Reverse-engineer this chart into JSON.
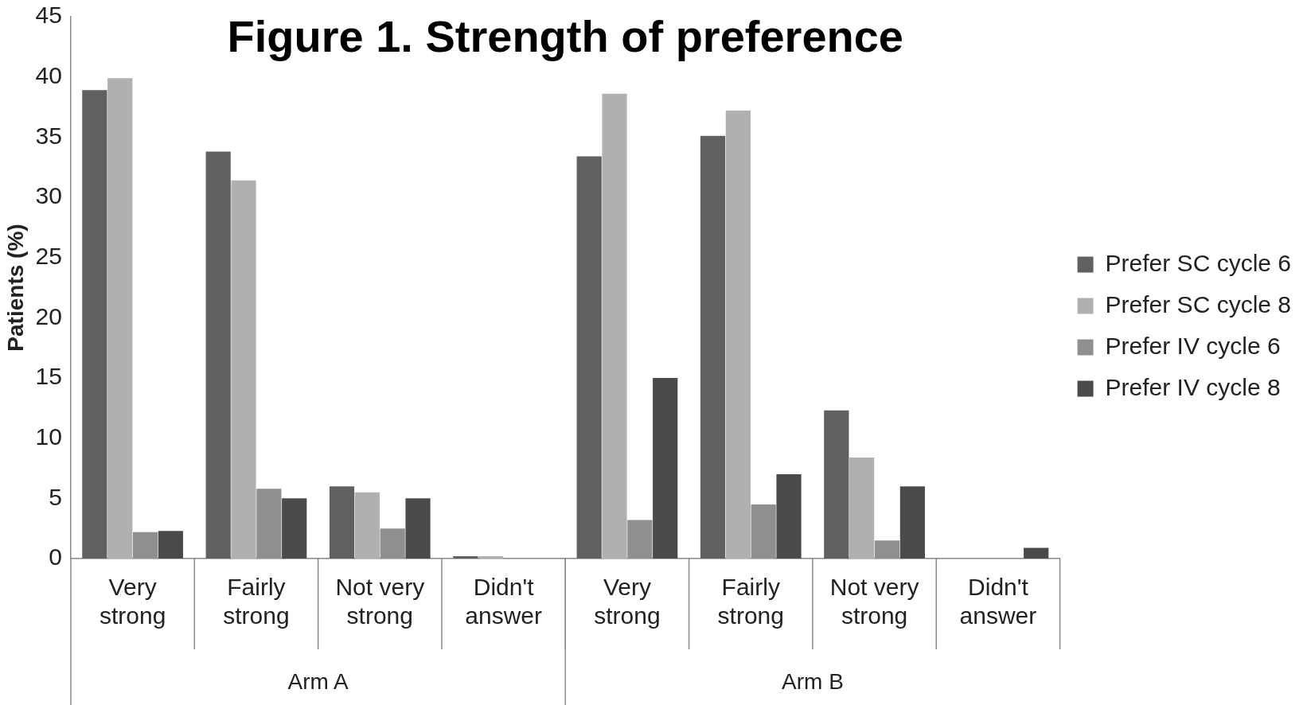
{
  "chart_data": {
    "type": "bar",
    "title": "Figure 1. Strength of preference",
    "ylabel": "Patients (%)",
    "categories": [
      "Very strong",
      "Fairly strong",
      "Not very strong",
      "Didn't answer",
      "Very strong",
      "Fairly strong",
      "Not very strong",
      "Didn't answer"
    ],
    "series": [
      {
        "name": "Prefer SC cycle 6",
        "color": "#606060",
        "values": [
          38.9,
          33.8,
          6.0,
          0.2,
          33.4,
          35.1,
          12.3,
          0
        ]
      },
      {
        "name": "Prefer SC cycle 8",
        "color": "#b0b0b0",
        "values": [
          39.9,
          31.4,
          5.5,
          0.2,
          38.6,
          37.2,
          8.4,
          0
        ]
      },
      {
        "name": "Prefer IV cycle 6",
        "color": "#8f8f8f",
        "values": [
          2.2,
          5.8,
          2.5,
          0,
          3.2,
          4.5,
          1.5,
          0
        ]
      },
      {
        "name": "Prefer IV cycle 8",
        "color": "#4a4a4a",
        "values": [
          2.3,
          5.0,
          5.0,
          0,
          15.0,
          7.0,
          6.0,
          0.9
        ]
      }
    ],
    "annotations": [
      "Arm A",
      "Arm B"
    ],
    "ylim": [
      0,
      45
    ],
    "yticks": [
      0,
      5,
      10,
      15,
      20,
      25,
      30,
      35,
      40,
      45
    ],
    "grid": false,
    "legend": "right"
  }
}
